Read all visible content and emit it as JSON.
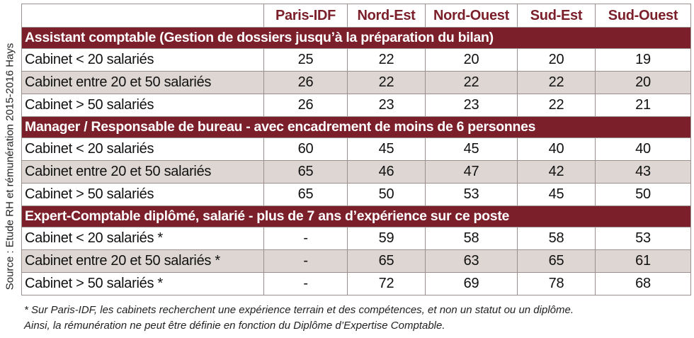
{
  "source": "Source : Etude RH et rémunération 2015-2016 Hays",
  "table": {
    "columns": [
      "Paris-IDF",
      "Nord-Est",
      "Nord-Ouest",
      "Sud-Est",
      "Sud-Ouest"
    ],
    "sections": [
      {
        "title": "Assistant comptable (Gestion de dossiers jusqu’à la préparation du bilan)",
        "rows": [
          {
            "label": "Cabinet < 20 salariés",
            "values": [
              25,
              22,
              20,
              20,
              19
            ]
          },
          {
            "label": "Cabinet entre 20 et 50 salariés",
            "values": [
              26,
              22,
              22,
              22,
              20
            ]
          },
          {
            "label": "Cabinet > 50 salariés",
            "values": [
              26,
              23,
              23,
              22,
              21
            ]
          }
        ]
      },
      {
        "title": "Manager / Responsable de bureau - avec encadrement de moins de 6 personnes",
        "rows": [
          {
            "label": "Cabinet < 20 salariés",
            "values": [
              60,
              45,
              45,
              40,
              40
            ]
          },
          {
            "label": "Cabinet entre 20 et 50 salariés",
            "values": [
              65,
              46,
              47,
              42,
              43
            ]
          },
          {
            "label": "Cabinet > 50 salariés",
            "values": [
              65,
              50,
              53,
              45,
              50
            ]
          }
        ]
      },
      {
        "title": "Expert-Comptable diplômé, salarié - plus de 7 ans d’expérience sur ce poste",
        "rows": [
          {
            "label": "Cabinet < 20 salariés *",
            "values": [
              "-",
              59,
              58,
              58,
              53
            ]
          },
          {
            "label": "Cabinet entre 20 et 50 salariés *",
            "values": [
              "-",
              65,
              63,
              65,
              61
            ]
          },
          {
            "label": "Cabinet > 50 salariés *",
            "values": [
              "-",
              72,
              69,
              78,
              68
            ]
          }
        ]
      }
    ]
  },
  "footnote": [
    "* Sur Paris-IDF, les cabinets recherchent une expérience terrain et des compétences, et non un statut ou un diplôme.",
    "Ainsi, la rémunération ne peut être définie en fonction du Diplôme d’Expertise Comptable."
  ]
}
